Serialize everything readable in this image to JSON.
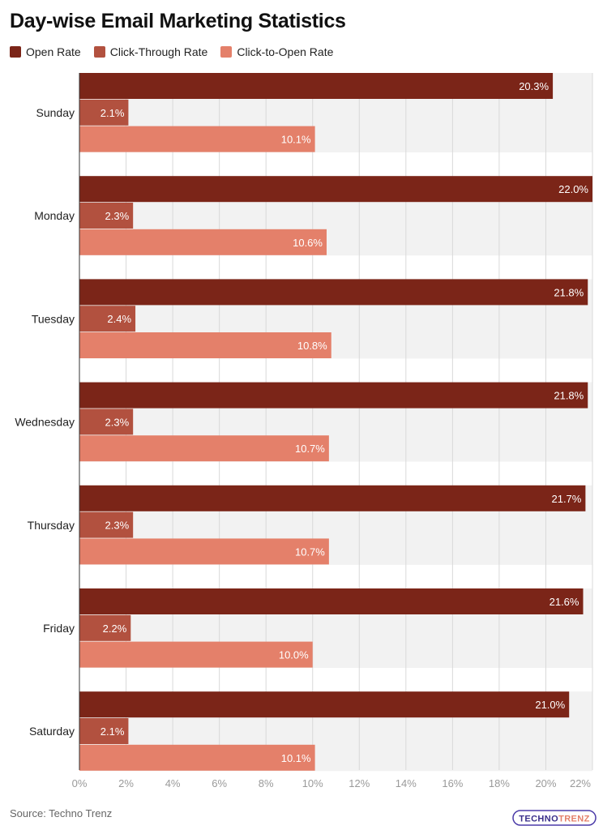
{
  "chart_data": {
    "type": "bar",
    "orientation": "horizontal",
    "title": "Day-wise Email Marketing Statistics",
    "categories": [
      "Sunday",
      "Monday",
      "Tuesday",
      "Wednesday",
      "Thursday",
      "Friday",
      "Saturday"
    ],
    "series": [
      {
        "name": "Open Rate",
        "color": "#7b2518",
        "values": [
          20.3,
          22.0,
          21.8,
          21.8,
          21.7,
          21.6,
          21.0
        ]
      },
      {
        "name": "Click-Through Rate",
        "color": "#b2513f",
        "values": [
          2.1,
          2.3,
          2.4,
          2.3,
          2.3,
          2.2,
          2.1
        ]
      },
      {
        "name": "Click-to-Open Rate",
        "color": "#e4806a",
        "values": [
          10.1,
          10.6,
          10.8,
          10.7,
          10.7,
          10.0,
          10.1
        ]
      }
    ],
    "xlim": [
      0,
      22
    ],
    "xticks": [
      "0%",
      "2%",
      "4%",
      "6%",
      "8%",
      "10%",
      "12%",
      "14%",
      "16%",
      "18%",
      "20%",
      "22%"
    ],
    "value_suffix": "%",
    "grid": true,
    "legend_position": "top-left"
  },
  "source": "Source: Techno Trenz",
  "logo": {
    "text_part1": "TECHNO",
    "text_part2": "TRENZ",
    "accent": "#4a3aa8"
  }
}
